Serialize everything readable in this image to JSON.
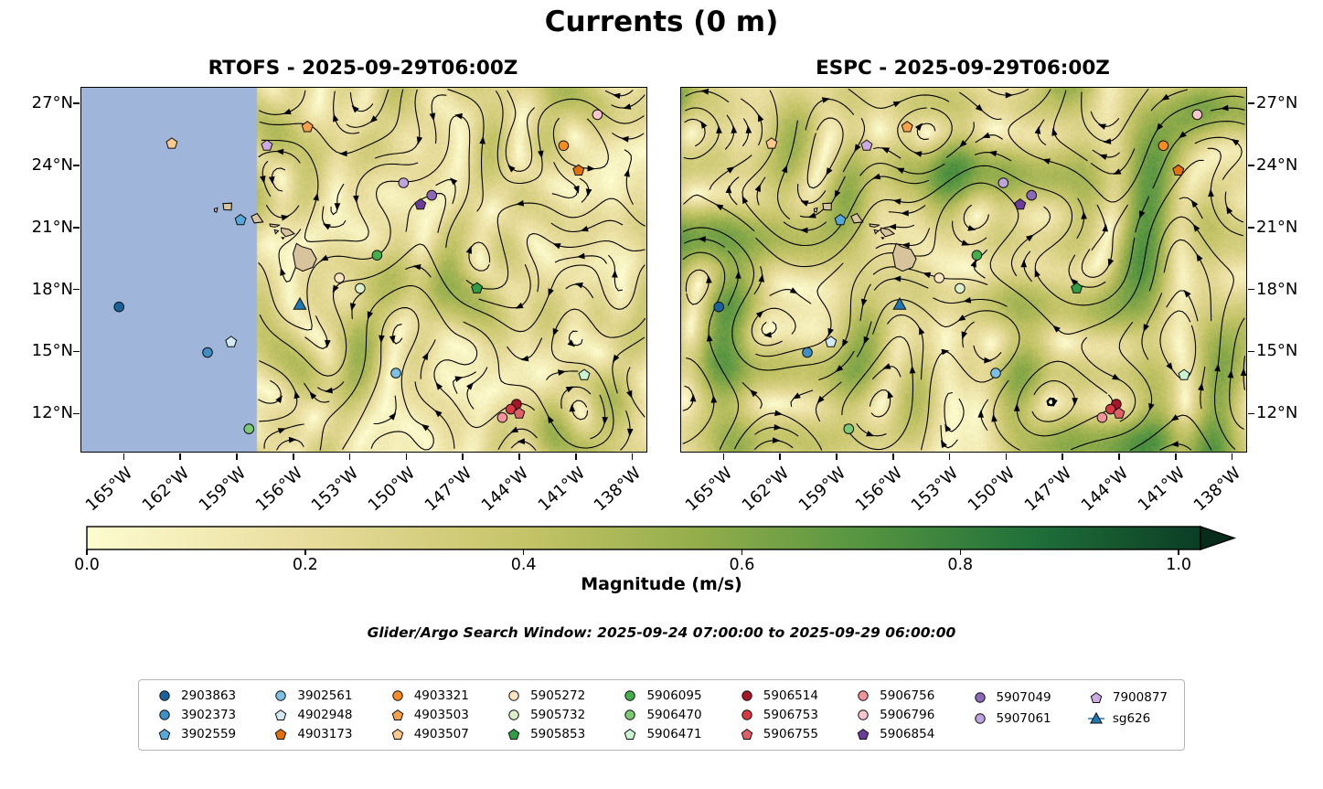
{
  "figure": {
    "title": "Currents (0 m)"
  },
  "search_window": "Glider/Argo Search Window: 2025-09-24 07:00:00 to 2025-09-29 06:00:00",
  "chart_data": {
    "type": "heatmap",
    "subtype": "ocean-surface-current-streamplot-maps",
    "panels": [
      {
        "id": "rtofs",
        "title": "RTOFS - 2025-09-29T06:00Z",
        "seed": 7,
        "energy": 0.115,
        "mean_u": -0.1,
        "mask": {
          "west_of_lon": -158.0,
          "color": "#9fb6da"
        }
      },
      {
        "id": "espc",
        "title": "ESPC - 2025-09-29T06:00Z",
        "seed": 23,
        "energy": 0.155,
        "mean_u": -0.12,
        "mask": null
      }
    ],
    "axes": {
      "lon_range": [
        -167.3,
        -137.3
      ],
      "lat_range": [
        10.2,
        27.8
      ],
      "lon_tick_values": [
        -165,
        -162,
        -159,
        -156,
        -153,
        -150,
        -147,
        -144,
        -141,
        -138
      ],
      "lon_tick_labels": [
        "165°W",
        "162°W",
        "159°W",
        "156°W",
        "153°W",
        "150°W",
        "147°W",
        "144°W",
        "141°W",
        "138°W"
      ],
      "lat_tick_values": [
        27,
        24,
        21,
        18,
        15,
        12
      ],
      "lat_tick_labels": [
        "27°N",
        "24°N",
        "21°N",
        "18°N",
        "15°N",
        "12°N"
      ]
    },
    "colorbar": {
      "label": "Magnitude (m/s)",
      "tick_labels": [
        "0.0",
        "0.2",
        "0.4",
        "0.6",
        "0.8",
        "1.0"
      ],
      "tick_values": [
        0,
        0.2,
        0.4,
        0.6,
        0.8,
        1.0
      ],
      "range": [
        0,
        1.02
      ],
      "extend": "max",
      "colormap": [
        [
          0,
          "#fdfcd0"
        ],
        [
          0.2,
          "#e8dc9c"
        ],
        [
          0.4,
          "#c3c366"
        ],
        [
          0.55,
          "#93ad4b"
        ],
        [
          0.7,
          "#549441"
        ],
        [
          0.85,
          "#20703a"
        ],
        [
          1,
          "#0b3d26"
        ]
      ],
      "extend_color": "#082c1c"
    },
    "markers": [
      {
        "id": "2903863",
        "shape": "circle",
        "color": "#19639c",
        "lon": -165.3,
        "lat": 17.2
      },
      {
        "id": "3902373",
        "shape": "circle",
        "color": "#3f8ec6",
        "lon": -160.6,
        "lat": 15.0
      },
      {
        "id": "3902559",
        "shape": "pentagon",
        "color": "#55a8d8",
        "lon": -158.85,
        "lat": 21.4
      },
      {
        "id": "3902561",
        "shape": "circle",
        "color": "#7cc0e8",
        "lon": -150.6,
        "lat": 14.0
      },
      {
        "id": "4902948",
        "shape": "pentagon",
        "color": "#d2e9f6",
        "lon": -159.35,
        "lat": 15.5
      },
      {
        "id": "4903173",
        "shape": "pentagon",
        "color": "#e2700c",
        "lon": -140.9,
        "lat": 23.8
      },
      {
        "id": "4903321",
        "shape": "circle",
        "color": "#f68c23",
        "lon": -141.7,
        "lat": 25.0
      },
      {
        "id": "4903503",
        "shape": "pentagon",
        "color": "#f7a24a",
        "lon": -155.3,
        "lat": 25.9
      },
      {
        "id": "4903507",
        "shape": "pentagon",
        "color": "#fbc98d",
        "lon": -162.5,
        "lat": 25.1
      },
      {
        "id": "5905272",
        "shape": "circle",
        "color": "#fde4c2",
        "lon": -153.6,
        "lat": 18.6
      },
      {
        "id": "5905732",
        "shape": "circle",
        "color": "#dcefcb",
        "lon": -152.5,
        "lat": 18.1
      },
      {
        "id": "5905853",
        "shape": "pentagon",
        "color": "#2f9e44",
        "lon": -146.3,
        "lat": 18.1
      },
      {
        "id": "5906095",
        "shape": "circle",
        "color": "#43b04b",
        "lon": -151.6,
        "lat": 19.7
      },
      {
        "id": "5906470",
        "shape": "circle",
        "color": "#7ccb74",
        "lon": -158.4,
        "lat": 11.3
      },
      {
        "id": "5906471",
        "shape": "pentagon",
        "color": "#c9f4d1",
        "lon": -140.6,
        "lat": 13.9
      },
      {
        "id": "5906514",
        "shape": "circle",
        "color": "#a81526",
        "lon": -144.2,
        "lat": 12.5
      },
      {
        "id": "5906753",
        "shape": "circle",
        "color": "#d93842",
        "lon": -144.5,
        "lat": 12.25
      },
      {
        "id": "5906755",
        "shape": "pentagon",
        "color": "#e0606a",
        "lon": -144.05,
        "lat": 12.05
      },
      {
        "id": "5906756",
        "shape": "circle",
        "color": "#f2949c",
        "lon": -144.95,
        "lat": 11.85
      },
      {
        "id": "5906796",
        "shape": "circle",
        "color": "#f9c6cd",
        "lon": -139.9,
        "lat": 26.5
      },
      {
        "id": "5906854",
        "shape": "pentagon",
        "color": "#6a3d9a",
        "lon": -149.3,
        "lat": 22.15
      },
      {
        "id": "5907049",
        "shape": "circle",
        "color": "#8d67b8",
        "lon": -148.7,
        "lat": 22.6
      },
      {
        "id": "5907061",
        "shape": "circle",
        "color": "#bfa3dc",
        "lon": -150.2,
        "lat": 23.2
      },
      {
        "id": "7900877",
        "shape": "pentagon",
        "color": "#cdaae2",
        "lon": -157.45,
        "lat": 25.0
      },
      {
        "id": "sg626",
        "shape": "triangle",
        "color": "#1f77b4",
        "lon": -155.7,
        "lat": 17.3
      }
    ],
    "legend": {
      "columns": [
        3,
        3,
        3,
        3,
        3,
        3,
        3,
        2,
        2
      ]
    },
    "islands": [
      [
        [
          -155.88,
          20.27
        ],
        [
          -155.6,
          20.12
        ],
        [
          -155.1,
          19.98
        ],
        [
          -154.82,
          19.52
        ],
        [
          -155.02,
          19.12
        ],
        [
          -155.55,
          18.93
        ],
        [
          -155.92,
          19.1
        ],
        [
          -156.06,
          19.78
        ]
      ],
      [
        [
          -156.7,
          21.02
        ],
        [
          -156.28,
          20.95
        ],
        [
          -155.99,
          20.74
        ],
        [
          -156.45,
          20.6
        ],
        [
          -156.68,
          20.82
        ]
      ],
      [
        [
          -156.66,
          20.56
        ],
        [
          -156.54,
          20.55
        ],
        [
          -156.6,
          20.49
        ]
      ],
      [
        [
          -157.05,
          20.93
        ],
        [
          -156.84,
          20.88
        ],
        [
          -156.99,
          20.74
        ]
      ],
      [
        [
          -157.3,
          21.21
        ],
        [
          -156.76,
          21.16
        ],
        [
          -157.02,
          21.06
        ],
        [
          -157.27,
          21.1
        ]
      ],
      [
        [
          -158.28,
          21.58
        ],
        [
          -157.97,
          21.72
        ],
        [
          -157.65,
          21.31
        ],
        [
          -158.12,
          21.26
        ]
      ],
      [
        [
          -159.78,
          22.2
        ],
        [
          -159.32,
          22.22
        ],
        [
          -159.34,
          21.88
        ],
        [
          -159.73,
          21.9
        ]
      ],
      [
        [
          -160.24,
          21.95
        ],
        [
          -160.07,
          21.99
        ],
        [
          -160.12,
          21.78
        ],
        [
          -160.23,
          21.82
        ]
      ]
    ],
    "island_color": "#d8c49c"
  }
}
